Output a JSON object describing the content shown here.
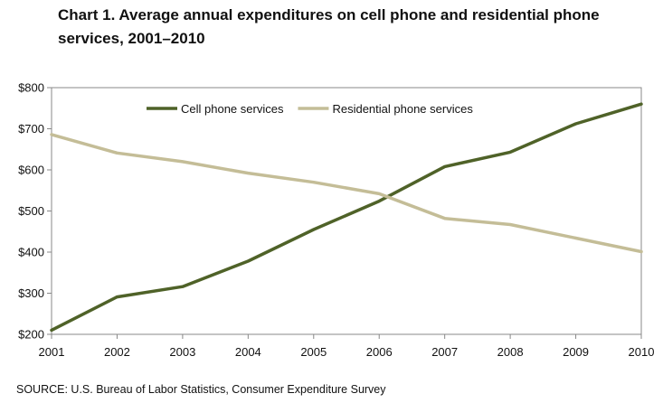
{
  "title": "Chart 1.  Average annual  expenditures on cell phone and residential phone services, 2001–2010",
  "source": "SOURCE: U.S. Bureau of Labor Statistics,  Consumer Expenditure Survey",
  "chart_data": {
    "type": "line",
    "title": "Chart 1.  Average annual  expenditures on cell phone and residential phone services, 2001–2010",
    "xlabel": "",
    "ylabel": "",
    "x": [
      "2001",
      "2002",
      "2003",
      "2004",
      "2005",
      "2006",
      "2007",
      "2008",
      "2009",
      "2010"
    ],
    "ylim": [
      200,
      800
    ],
    "yticks": [
      200,
      300,
      400,
      500,
      600,
      700,
      800
    ],
    "ytick_labels": [
      "$200",
      "$300",
      "$400",
      "$500",
      "$600",
      "$700",
      "$800"
    ],
    "grid": false,
    "legend_position": "top-center",
    "series": [
      {
        "name": "Cell phone services",
        "color": "#4f6228",
        "values": [
          210,
          291,
          316,
          378,
          455,
          524,
          608,
          643,
          712,
          760
        ]
      },
      {
        "name": "Residential phone services",
        "color": "#c4bd97",
        "values": [
          686,
          641,
          620,
          592,
          570,
          542,
          482,
          467,
          434,
          401
        ]
      }
    ]
  }
}
